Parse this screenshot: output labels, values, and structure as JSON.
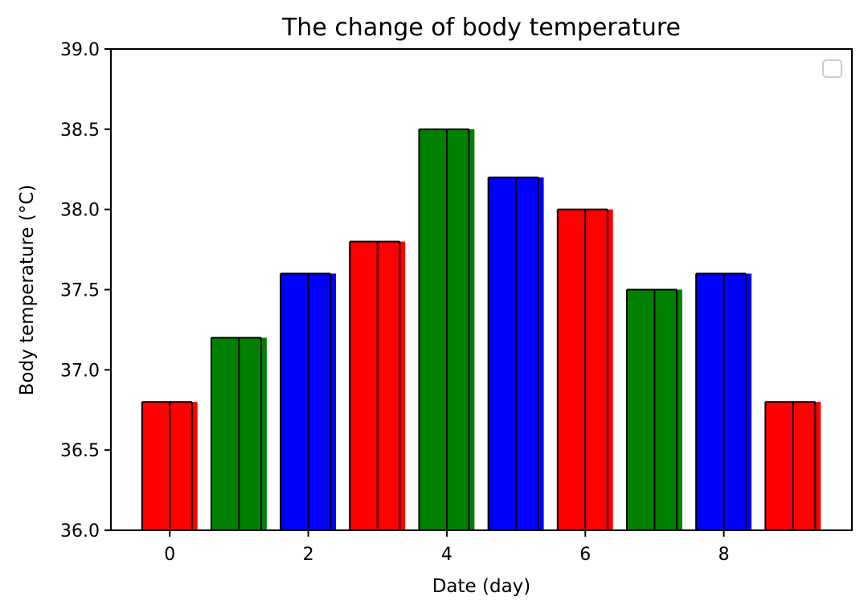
{
  "chart_data": {
    "type": "bar",
    "title": "The change of body temperature",
    "xlabel": "Date (day)",
    "ylabel": "Body temperature (°C)",
    "x": [
      0,
      1,
      2,
      3,
      4,
      5,
      6,
      7,
      8,
      9
    ],
    "values": [
      36.8,
      37.2,
      37.6,
      37.8,
      38.5,
      38.2,
      38.0,
      37.5,
      37.6,
      36.8
    ],
    "bar_colors": [
      "#ff0000",
      "#008000",
      "#0000ff",
      "#ff0000",
      "#008000",
      "#0000ff",
      "#ff0000",
      "#008000",
      "#0000ff",
      "#ff0000"
    ],
    "bar_line_color": "#000000",
    "ylim": [
      36.0,
      39.0
    ],
    "xlim": [
      -0.85,
      9.85
    ],
    "x_ticks": [
      0,
      2,
      4,
      6,
      8
    ],
    "x_tick_labels": [
      "0",
      "2",
      "4",
      "6",
      "8"
    ],
    "y_ticks": [
      36.0,
      36.5,
      37.0,
      37.5,
      38.0,
      38.5,
      39.0
    ],
    "y_tick_labels": [
      "36.0",
      "36.5",
      "37.0",
      "37.5",
      "38.0",
      "38.5",
      "39.0"
    ],
    "grid": false,
    "legend": {
      "shown": true,
      "entries": [],
      "placement": "upper-right"
    }
  }
}
